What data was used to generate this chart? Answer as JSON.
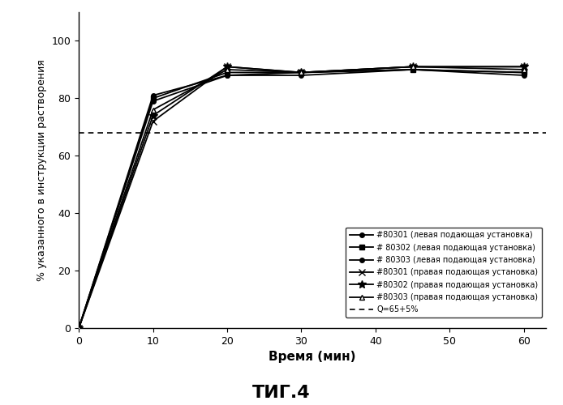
{
  "title": "ΤИГ.4",
  "xlabel": "Время (мин)",
  "ylabel": "% указанного в инструкции растворения",
  "xlim": [
    0,
    63
  ],
  "ylim": [
    0,
    110
  ],
  "yticks": [
    0,
    20,
    40,
    60,
    80,
    100
  ],
  "xticks": [
    0,
    10,
    20,
    30,
    40,
    50,
    60
  ],
  "dotted_line_y": 68,
  "series": [
    {
      "label": "#耀80301 (левая подающая установка)",
      "label_text": "#80301 (левая подающая установка)",
      "x": [
        0,
        10,
        20,
        30,
        45,
        60
      ],
      "y": [
        0,
        81,
        88,
        89,
        90,
        89
      ],
      "marker": "o",
      "markersize": 4,
      "markerfacecolor": "#000000",
      "color": "#000000",
      "linestyle": "-",
      "linewidth": 1.3
    },
    {
      "label_text": "# 80302 (левая подающая установка)",
      "x": [
        0,
        10,
        20,
        30,
        45,
        60
      ],
      "y": [
        0,
        80,
        89,
        89,
        90,
        89
      ],
      "marker": "s",
      "markersize": 4,
      "markerfacecolor": "#000000",
      "color": "#000000",
      "linestyle": "-",
      "linewidth": 1.3
    },
    {
      "label_text": "# 80303 (левая подающая установка)",
      "x": [
        0,
        10,
        20,
        30,
        45,
        60
      ],
      "y": [
        0,
        79,
        88,
        88,
        90,
        88
      ],
      "marker": "o",
      "markersize": 4,
      "markerfacecolor": "#000000",
      "color": "#000000",
      "linestyle": "-",
      "linewidth": 1.3
    },
    {
      "label_text": "#80301 (правая подающая установка)",
      "x": [
        0,
        10,
        20,
        30,
        45,
        60
      ],
      "y": [
        0,
        72,
        91,
        89,
        91,
        91
      ],
      "marker": "x",
      "markersize": 6,
      "markerfacecolor": "#000000",
      "color": "#000000",
      "linestyle": "-",
      "linewidth": 1.3
    },
    {
      "label_text": "#80302 (правая подающая установка)",
      "x": [
        0,
        10,
        20,
        30,
        45,
        60
      ],
      "y": [
        0,
        74,
        91,
        89,
        91,
        91
      ],
      "marker": "*",
      "markersize": 7,
      "markerfacecolor": "#000000",
      "color": "#000000",
      "linestyle": "-",
      "linewidth": 1.3
    },
    {
      "label_text": "#80303 (правая подающая установка)",
      "x": [
        0,
        10,
        20,
        30,
        45,
        60
      ],
      "y": [
        0,
        76,
        90,
        89,
        91,
        90
      ],
      "marker": "^",
      "markersize": 5,
      "markerfacecolor": "white",
      "color": "#000000",
      "linestyle": "-",
      "linewidth": 1.3
    }
  ],
  "dotted_label": "Q=65+5%",
  "background_color": "#ffffff",
  "legend_fontsize": 7,
  "axis_label_fontsize": 11,
  "ylabel_fontsize": 9,
  "title_fontsize": 16,
  "tick_fontsize": 9
}
